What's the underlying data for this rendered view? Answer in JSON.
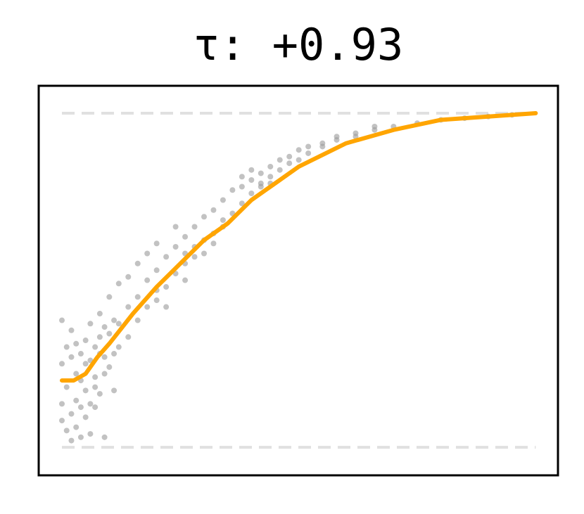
{
  "chart_data": {
    "type": "scatter",
    "title": "τ: +0.93",
    "xlim": [
      -0.049,
      1.047
    ],
    "ylim": [
      -0.084,
      1.082
    ],
    "reference_lines": [
      0,
      1
    ],
    "reference_color": "#e0e0e0",
    "points": {
      "color": "#999999",
      "x": [
        0,
        0,
        0,
        0,
        0.01,
        0.01,
        0.01,
        0.02,
        0.02,
        0.02,
        0.02,
        0.03,
        0.03,
        0.03,
        0.03,
        0.04,
        0.04,
        0.04,
        0.04,
        0.05,
        0.05,
        0.05,
        0.05,
        0.06,
        0.06,
        0.06,
        0.06,
        0.07,
        0.07,
        0.07,
        0.07,
        0.08,
        0.08,
        0.08,
        0.08,
        0.09,
        0.09,
        0.09,
        0.09,
        0.1,
        0.1,
        0.1,
        0.11,
        0.11,
        0.11,
        0.12,
        0.12,
        0.12,
        0.14,
        0.14,
        0.14,
        0.16,
        0.16,
        0.16,
        0.18,
        0.18,
        0.18,
        0.2,
        0.2,
        0.2,
        0.2,
        0.22,
        0.22,
        0.22,
        0.24,
        0.24,
        0.24,
        0.26,
        0.26,
        0.26,
        0.26,
        0.28,
        0.28,
        0.28,
        0.3,
        0.3,
        0.3,
        0.32,
        0.32,
        0.32,
        0.34,
        0.34,
        0.34,
        0.36,
        0.36,
        0.38,
        0.38,
        0.38,
        0.4,
        0.4,
        0.4,
        0.42,
        0.42,
        0.42,
        0.44,
        0.44,
        0.44,
        0.46,
        0.46,
        0.48,
        0.48,
        0.5,
        0.5,
        0.52,
        0.52,
        0.55,
        0.55,
        0.58,
        0.58,
        0.62,
        0.62,
        0.66,
        0.66,
        0.7,
        0.75,
        0.8,
        0.85,
        0.9,
        0.95
      ],
      "y": [
        0.25,
        0.08,
        0.38,
        0.13,
        0.3,
        0.18,
        0.05,
        0.27,
        0.1,
        0.35,
        0.02,
        0.22,
        0.14,
        0.31,
        0.06,
        0.28,
        0.12,
        0.2,
        0.03,
        0.32,
        0.17,
        0.25,
        0.09,
        0.26,
        0.37,
        0.13,
        0.04,
        0.21,
        0.3,
        0.18,
        0.12,
        0.4,
        0.33,
        0.16,
        0.28,
        0.27,
        0.36,
        0.22,
        0.03,
        0.45,
        0.34,
        0.24,
        0.38,
        0.28,
        0.17,
        0.49,
        0.37,
        0.3,
        0.42,
        0.33,
        0.51,
        0.45,
        0.38,
        0.55,
        0.5,
        0.42,
        0.58,
        0.53,
        0.44,
        0.61,
        0.47,
        0.57,
        0.48,
        0.42,
        0.6,
        0.52,
        0.66,
        0.63,
        0.55,
        0.58,
        0.5,
        0.66,
        0.6,
        0.57,
        0.69,
        0.62,
        0.58,
        0.71,
        0.64,
        0.61,
        0.74,
        0.68,
        0.66,
        0.77,
        0.7,
        0.78,
        0.73,
        0.81,
        0.8,
        0.76,
        0.83,
        0.82,
        0.78,
        0.79,
        0.84,
        0.81,
        0.79,
        0.86,
        0.83,
        0.87,
        0.85,
        0.89,
        0.86,
        0.9,
        0.88,
        0.91,
        0.9,
        0.93,
        0.92,
        0.94,
        0.93,
        0.95,
        0.96,
        0.96,
        0.97,
        0.98,
        0.985,
        0.99,
        0.995
      ]
    },
    "line": {
      "color": "#ffa500",
      "x": [
        0,
        0.025,
        0.05,
        0.075,
        0.1,
        0.15,
        0.2,
        0.25,
        0.3,
        0.35,
        0.4,
        0.45,
        0.5,
        0.6,
        0.7,
        0.8,
        0.9,
        1
      ],
      "y": [
        0.2,
        0.2,
        0.22,
        0.27,
        0.31,
        0.4,
        0.48,
        0.55,
        0.62,
        0.67,
        0.74,
        0.79,
        0.84,
        0.91,
        0.95,
        0.98,
        0.99,
        1
      ]
    }
  }
}
